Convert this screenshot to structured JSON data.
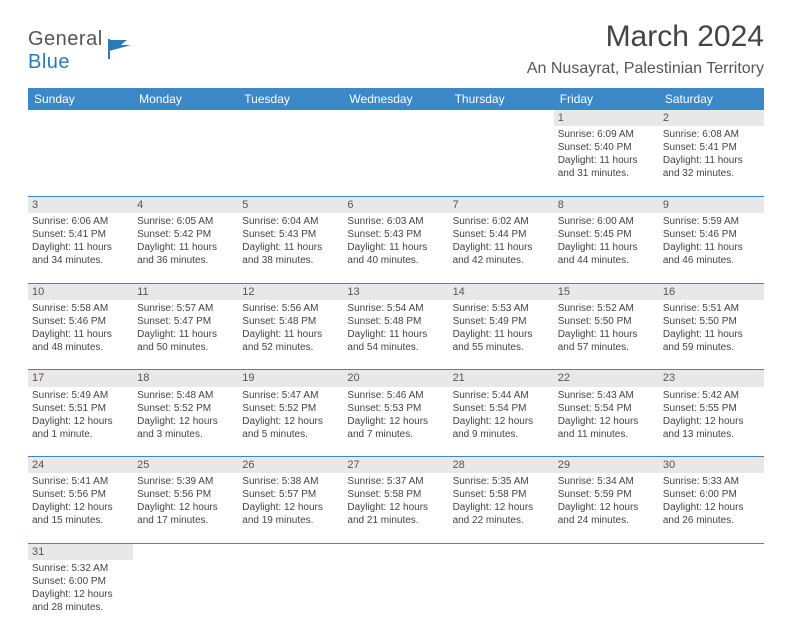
{
  "logo": {
    "text1": "General",
    "text2": "Blue"
  },
  "title": "March 2024",
  "location": "An Nusayrat, Palestinian Territory",
  "header_bg": "#3b87c8",
  "weekdays": [
    "Sunday",
    "Monday",
    "Tuesday",
    "Wednesday",
    "Thursday",
    "Friday",
    "Saturday"
  ],
  "weeks": [
    [
      null,
      null,
      null,
      null,
      null,
      {
        "d": "1",
        "sr": "6:09 AM",
        "ss": "5:40 PM",
        "dl": "11 hours and 31 minutes."
      },
      {
        "d": "2",
        "sr": "6:08 AM",
        "ss": "5:41 PM",
        "dl": "11 hours and 32 minutes."
      }
    ],
    [
      {
        "d": "3",
        "sr": "6:06 AM",
        "ss": "5:41 PM",
        "dl": "11 hours and 34 minutes."
      },
      {
        "d": "4",
        "sr": "6:05 AM",
        "ss": "5:42 PM",
        "dl": "11 hours and 36 minutes."
      },
      {
        "d": "5",
        "sr": "6:04 AM",
        "ss": "5:43 PM",
        "dl": "11 hours and 38 minutes."
      },
      {
        "d": "6",
        "sr": "6:03 AM",
        "ss": "5:43 PM",
        "dl": "11 hours and 40 minutes."
      },
      {
        "d": "7",
        "sr": "6:02 AM",
        "ss": "5:44 PM",
        "dl": "11 hours and 42 minutes."
      },
      {
        "d": "8",
        "sr": "6:00 AM",
        "ss": "5:45 PM",
        "dl": "11 hours and 44 minutes."
      },
      {
        "d": "9",
        "sr": "5:59 AM",
        "ss": "5:46 PM",
        "dl": "11 hours and 46 minutes."
      }
    ],
    [
      {
        "d": "10",
        "sr": "5:58 AM",
        "ss": "5:46 PM",
        "dl": "11 hours and 48 minutes."
      },
      {
        "d": "11",
        "sr": "5:57 AM",
        "ss": "5:47 PM",
        "dl": "11 hours and 50 minutes."
      },
      {
        "d": "12",
        "sr": "5:56 AM",
        "ss": "5:48 PM",
        "dl": "11 hours and 52 minutes."
      },
      {
        "d": "13",
        "sr": "5:54 AM",
        "ss": "5:48 PM",
        "dl": "11 hours and 54 minutes."
      },
      {
        "d": "14",
        "sr": "5:53 AM",
        "ss": "5:49 PM",
        "dl": "11 hours and 55 minutes."
      },
      {
        "d": "15",
        "sr": "5:52 AM",
        "ss": "5:50 PM",
        "dl": "11 hours and 57 minutes."
      },
      {
        "d": "16",
        "sr": "5:51 AM",
        "ss": "5:50 PM",
        "dl": "11 hours and 59 minutes."
      }
    ],
    [
      {
        "d": "17",
        "sr": "5:49 AM",
        "ss": "5:51 PM",
        "dl": "12 hours and 1 minute."
      },
      {
        "d": "18",
        "sr": "5:48 AM",
        "ss": "5:52 PM",
        "dl": "12 hours and 3 minutes."
      },
      {
        "d": "19",
        "sr": "5:47 AM",
        "ss": "5:52 PM",
        "dl": "12 hours and 5 minutes."
      },
      {
        "d": "20",
        "sr": "5:46 AM",
        "ss": "5:53 PM",
        "dl": "12 hours and 7 minutes."
      },
      {
        "d": "21",
        "sr": "5:44 AM",
        "ss": "5:54 PM",
        "dl": "12 hours and 9 minutes."
      },
      {
        "d": "22",
        "sr": "5:43 AM",
        "ss": "5:54 PM",
        "dl": "12 hours and 11 minutes."
      },
      {
        "d": "23",
        "sr": "5:42 AM",
        "ss": "5:55 PM",
        "dl": "12 hours and 13 minutes."
      }
    ],
    [
      {
        "d": "24",
        "sr": "5:41 AM",
        "ss": "5:56 PM",
        "dl": "12 hours and 15 minutes."
      },
      {
        "d": "25",
        "sr": "5:39 AM",
        "ss": "5:56 PM",
        "dl": "12 hours and 17 minutes."
      },
      {
        "d": "26",
        "sr": "5:38 AM",
        "ss": "5:57 PM",
        "dl": "12 hours and 19 minutes."
      },
      {
        "d": "27",
        "sr": "5:37 AM",
        "ss": "5:58 PM",
        "dl": "12 hours and 21 minutes."
      },
      {
        "d": "28",
        "sr": "5:35 AM",
        "ss": "5:58 PM",
        "dl": "12 hours and 22 minutes."
      },
      {
        "d": "29",
        "sr": "5:34 AM",
        "ss": "5:59 PM",
        "dl": "12 hours and 24 minutes."
      },
      {
        "d": "30",
        "sr": "5:33 AM",
        "ss": "6:00 PM",
        "dl": "12 hours and 26 minutes."
      }
    ],
    [
      {
        "d": "31",
        "sr": "5:32 AM",
        "ss": "6:00 PM",
        "dl": "12 hours and 28 minutes."
      },
      null,
      null,
      null,
      null,
      null,
      null
    ]
  ],
  "labels": {
    "sunrise": "Sunrise: ",
    "sunset": "Sunset: ",
    "daylight": "Daylight: "
  }
}
